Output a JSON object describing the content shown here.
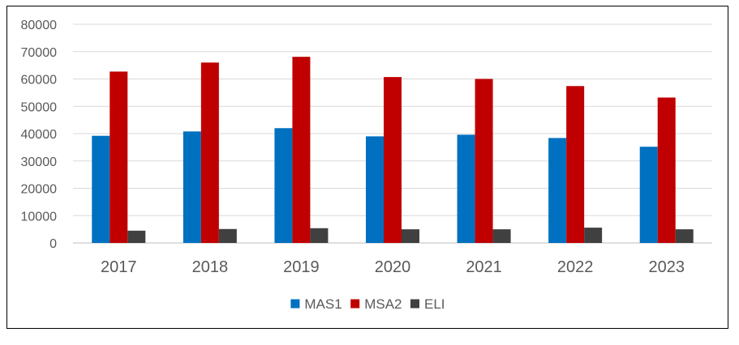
{
  "chart_data": {
    "type": "bar",
    "title": "",
    "xlabel": "",
    "ylabel": "",
    "categories": [
      "2017",
      "2018",
      "2019",
      "2020",
      "2021",
      "2022",
      "2023"
    ],
    "series": [
      {
        "name": "MAS1",
        "color": "#0070c0",
        "values": [
          39200,
          40800,
          42000,
          39000,
          39600,
          38400,
          35200
        ]
      },
      {
        "name": "MSA2",
        "color": "#c00000",
        "values": [
          62700,
          66000,
          68100,
          60700,
          60000,
          57400,
          53200
        ]
      },
      {
        "name": "ELI",
        "color": "#404040",
        "values": [
          4500,
          5100,
          5400,
          5000,
          5000,
          5600,
          5000
        ]
      }
    ],
    "ylim": [
      0,
      80000
    ],
    "yticks": [
      0,
      10000,
      20000,
      30000,
      40000,
      50000,
      60000,
      70000,
      80000
    ],
    "grid": true,
    "legend_position": "bottom"
  }
}
